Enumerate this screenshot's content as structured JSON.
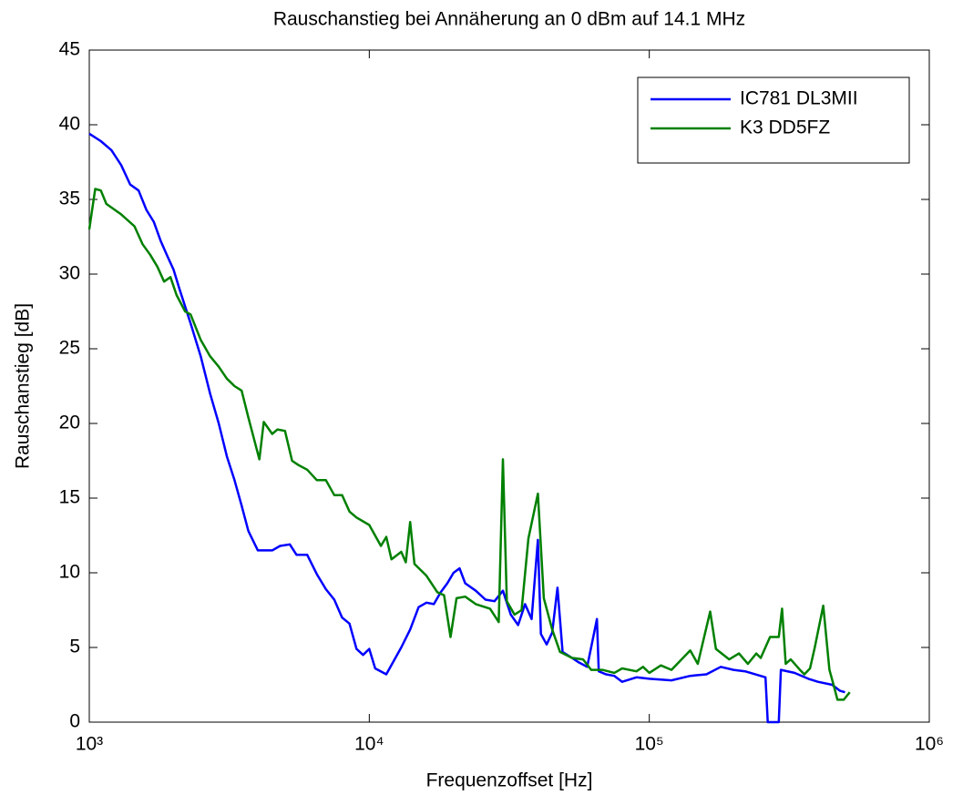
{
  "chart_data": {
    "type": "line",
    "title": "Rauschanstieg bei Annäherung an 0 dBm auf 14.1 MHz",
    "xlabel": "Frequenzoffset [Hz]",
    "ylabel": "Rauschanstieg [dB]",
    "xscale": "log",
    "xlim": [
      1000,
      1000000
    ],
    "ylim": [
      0,
      45
    ],
    "xticks": [
      {
        "value": 1000,
        "label": "10³"
      },
      {
        "value": 10000,
        "label": "10⁴"
      },
      {
        "value": 100000,
        "label": "10⁵"
      },
      {
        "value": 1000000,
        "label": "10⁶"
      }
    ],
    "yticks": [
      0,
      5,
      10,
      15,
      20,
      25,
      30,
      35,
      40,
      45
    ],
    "grid": false,
    "legend": "upper right",
    "series": [
      {
        "name": "IC781 DL3MII",
        "color": "#0000ff",
        "x": [
          1000,
          1100,
          1200,
          1300,
          1400,
          1500,
          1600,
          1700,
          1800,
          1900,
          2000,
          2100,
          2300,
          2500,
          2700,
          2900,
          3100,
          3300,
          3500,
          3700,
          4000,
          4500,
          4800,
          5200,
          5500,
          6000,
          6500,
          7000,
          7500,
          8000,
          8500,
          9000,
          9500,
          10000,
          10500,
          11500,
          13000,
          14000,
          15000,
          16000,
          17000,
          18000,
          19000,
          20000,
          21000,
          22000,
          24000,
          26000,
          28000,
          30000,
          32000,
          34000,
          36000,
          38000,
          40000,
          41000,
          43000,
          45000,
          47000,
          49000,
          53000,
          56000,
          60000,
          65000,
          66000,
          70000,
          75000,
          80000,
          90000,
          100000,
          120000,
          140000,
          160000,
          180000,
          200000,
          220000,
          260000,
          265000,
          290000,
          295000,
          330000,
          370000,
          400000,
          450000,
          480000,
          500000
        ],
        "values": [
          39.4,
          38.9,
          38.3,
          37.3,
          36.0,
          35.6,
          34.3,
          33.5,
          32.2,
          31.2,
          30.3,
          29.0,
          26.7,
          24.5,
          22.0,
          20.0,
          17.8,
          16.2,
          14.5,
          12.8,
          11.5,
          11.5,
          11.8,
          11.9,
          11.2,
          11.2,
          9.9,
          8.9,
          8.2,
          7.0,
          6.6,
          4.9,
          4.5,
          4.9,
          3.6,
          3.2,
          5.0,
          6.2,
          7.7,
          8.0,
          7.9,
          8.7,
          9.3,
          10.0,
          10.3,
          9.3,
          8.8,
          8.2,
          8.1,
          8.8,
          7.2,
          6.5,
          7.9,
          6.9,
          12.2,
          5.9,
          5.2,
          6.0,
          9.0,
          4.7,
          4.3,
          4.0,
          3.7,
          6.9,
          3.4,
          3.2,
          3.1,
          2.7,
          3.0,
          2.9,
          2.8,
          3.1,
          3.2,
          3.7,
          3.5,
          3.4,
          3.0,
          0,
          0,
          3.5,
          3.3,
          2.9,
          2.7,
          2.5,
          2.1,
          2.0
        ]
      },
      {
        "name": "K3 DD5FZ",
        "color": "#008000",
        "x": [
          1000,
          1050,
          1100,
          1150,
          1300,
          1450,
          1550,
          1650,
          1750,
          1850,
          1950,
          2050,
          2200,
          2300,
          2500,
          2700,
          2900,
          3100,
          3300,
          3500,
          3700,
          4050,
          4200,
          4500,
          4700,
          5000,
          5300,
          5600,
          6000,
          6500,
          7000,
          7500,
          8000,
          8500,
          9000,
          10000,
          11000,
          11500,
          12000,
          13000,
          13500,
          14000,
          14500,
          16000,
          17500,
          18500,
          19500,
          20500,
          22000,
          24000,
          27000,
          29000,
          30000,
          31000,
          33000,
          35000,
          37000,
          40000,
          42000,
          45000,
          48000,
          53000,
          58000,
          62000,
          68000,
          75000,
          80000,
          90000,
          95000,
          100000,
          110000,
          120000,
          140000,
          149000,
          165000,
          173000,
          193000,
          209000,
          225000,
          241000,
          250000,
          270000,
          290000,
          298000,
          307000,
          320000,
          345000,
          358000,
          375000,
          390000,
          418000,
          440000,
          455000,
          470000,
          495000,
          520000
        ],
        "values": [
          33.0,
          35.7,
          35.6,
          34.7,
          34.0,
          33.2,
          32.0,
          31.3,
          30.5,
          29.5,
          29.8,
          28.6,
          27.5,
          27.3,
          25.6,
          24.5,
          23.8,
          23.0,
          22.5,
          22.2,
          20.4,
          17.6,
          20.1,
          19.3,
          19.6,
          19.5,
          17.5,
          17.2,
          16.9,
          16.2,
          16.2,
          15.2,
          15.2,
          14.1,
          13.7,
          13.2,
          11.8,
          12.4,
          10.9,
          11.4,
          10.7,
          13.4,
          10.6,
          9.8,
          8.7,
          8.5,
          5.7,
          8.3,
          8.4,
          7.9,
          7.6,
          6.7,
          17.6,
          8.1,
          7.2,
          7.5,
          12.3,
          15.3,
          8.3,
          6.2,
          4.7,
          4.3,
          4.2,
          3.5,
          3.5,
          3.3,
          3.6,
          3.4,
          3.7,
          3.3,
          3.8,
          3.5,
          4.8,
          3.9,
          7.4,
          4.9,
          4.2,
          4.6,
          3.9,
          4.6,
          4.3,
          5.7,
          5.7,
          7.6,
          3.9,
          4.2,
          3.5,
          3.2,
          3.6,
          5.0,
          7.8,
          3.5,
          2.5,
          1.5,
          1.5,
          2.0
        ]
      }
    ]
  }
}
